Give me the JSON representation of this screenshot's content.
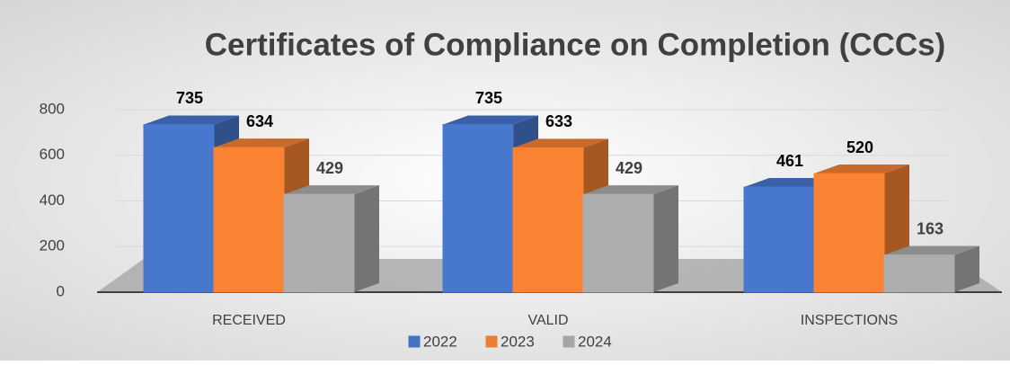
{
  "chart_data": {
    "type": "bar3d",
    "title": "Certificates of Compliance on Completion (CCCs)",
    "categories": [
      "RECEIVED",
      "VALID",
      "INSPECTIONS"
    ],
    "series": [
      {
        "name": "2022",
        "color": "#4472c4",
        "values": [
          735,
          735,
          461
        ]
      },
      {
        "name": "2023",
        "color": "#ed7d31",
        "values": [
          634,
          633,
          520
        ]
      },
      {
        "name": "2024",
        "color": "#a5a5a5",
        "values": [
          429,
          429,
          163
        ]
      }
    ],
    "ylim": [
      0,
      800
    ],
    "yticks": [
      0,
      200,
      400,
      600,
      800
    ],
    "grid": true,
    "legend": "bottom"
  }
}
